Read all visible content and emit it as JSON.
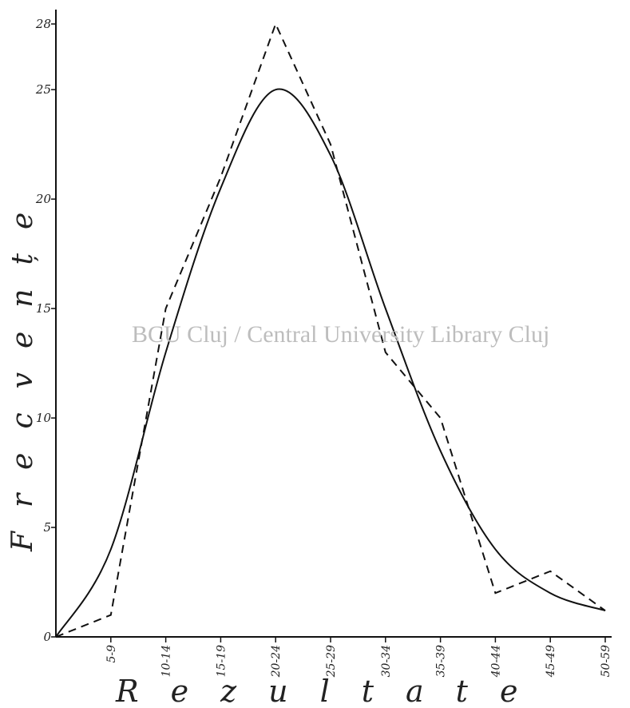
{
  "chart_data": {
    "type": "line",
    "xlabel": "Rezultate",
    "ylabel": "Frecvențe",
    "categories": [
      "0",
      "5-9",
      "10-14",
      "15-19",
      "20-24",
      "25-29",
      "30-34",
      "35-39",
      "40-44",
      "45-49",
      "50-59"
    ],
    "x_tick_labels": [
      "5-9",
      "10-14",
      "15-19",
      "20-24",
      "25-29",
      "30-34",
      "35-39",
      "40-44",
      "45-49",
      "50-59"
    ],
    "y_tick_labels": [
      "0",
      "5",
      "10",
      "15",
      "20",
      "25",
      "28"
    ],
    "yticks": [
      0,
      5,
      10,
      15,
      20,
      25,
      28
    ],
    "ylim": [
      0,
      28
    ],
    "grid": false,
    "series": [
      {
        "style": "dashed",
        "values": [
          0,
          1,
          15,
          21,
          28,
          22.5,
          13,
          10,
          2,
          3,
          1.2
        ]
      },
      {
        "style": "solid",
        "values": [
          0,
          4,
          13,
          20.5,
          25,
          22,
          15,
          8.5,
          4,
          2,
          1.2
        ]
      }
    ]
  },
  "watermark": "BCU Cluj / Central University Library Cluj"
}
